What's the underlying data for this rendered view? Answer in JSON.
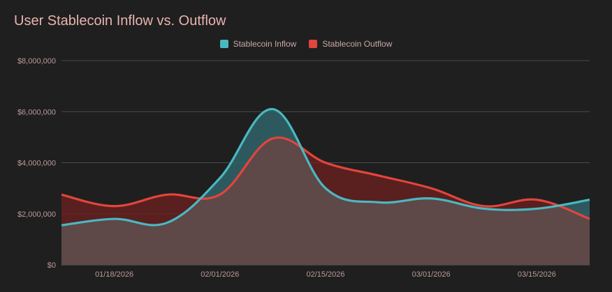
{
  "title": "User Stablecoin Inflow vs. Outflow",
  "colors": {
    "inflow": "#4ab8c1",
    "outflow": "#e2453c",
    "inflow_fill": "rgba(48,100,106,0.85)",
    "outflow_fill": "rgba(110,34,32,0.75)",
    "overlap_fill": "#5e4848",
    "grid": "#4a4a4a"
  },
  "chart_data": {
    "type": "area",
    "title": "User Stablecoin Inflow vs. Outflow",
    "xlabel": "",
    "ylabel": "",
    "ylim": [
      0,
      8000000
    ],
    "yticks": [
      "$0",
      "$2,000,000",
      "$4,000,000",
      "$6,000,000",
      "$8,000,000"
    ],
    "ytick_values": [
      0,
      2000000,
      4000000,
      6000000,
      8000000
    ],
    "xticks": [
      "01/18/2026",
      "02/01/2026",
      "02/15/2026",
      "03/01/2026",
      "03/15/2026"
    ],
    "xtick_dates": [
      "2026-01-18",
      "2026-02-01",
      "2026-02-15",
      "2026-03-01",
      "2026-03-15"
    ],
    "x": [
      "2026-01-11",
      "2026-01-18",
      "2026-01-25",
      "2026-02-01",
      "2026-02-08",
      "2026-02-15",
      "2026-02-22",
      "2026-03-01",
      "2026-03-08",
      "2026-03-15",
      "2026-03-22"
    ],
    "legend_position": "top-center",
    "grid": true,
    "series": [
      {
        "name": "Stablecoin Inflow",
        "values": [
          1550000,
          1800000,
          1650000,
          3400000,
          6100000,
          3000000,
          2450000,
          2600000,
          2200000,
          2200000,
          2550000
        ]
      },
      {
        "name": "Stablecoin Outflow",
        "values": [
          2750000,
          2300000,
          2750000,
          2750000,
          4950000,
          4000000,
          3500000,
          3000000,
          2300000,
          2550000,
          1800000
        ]
      }
    ]
  }
}
